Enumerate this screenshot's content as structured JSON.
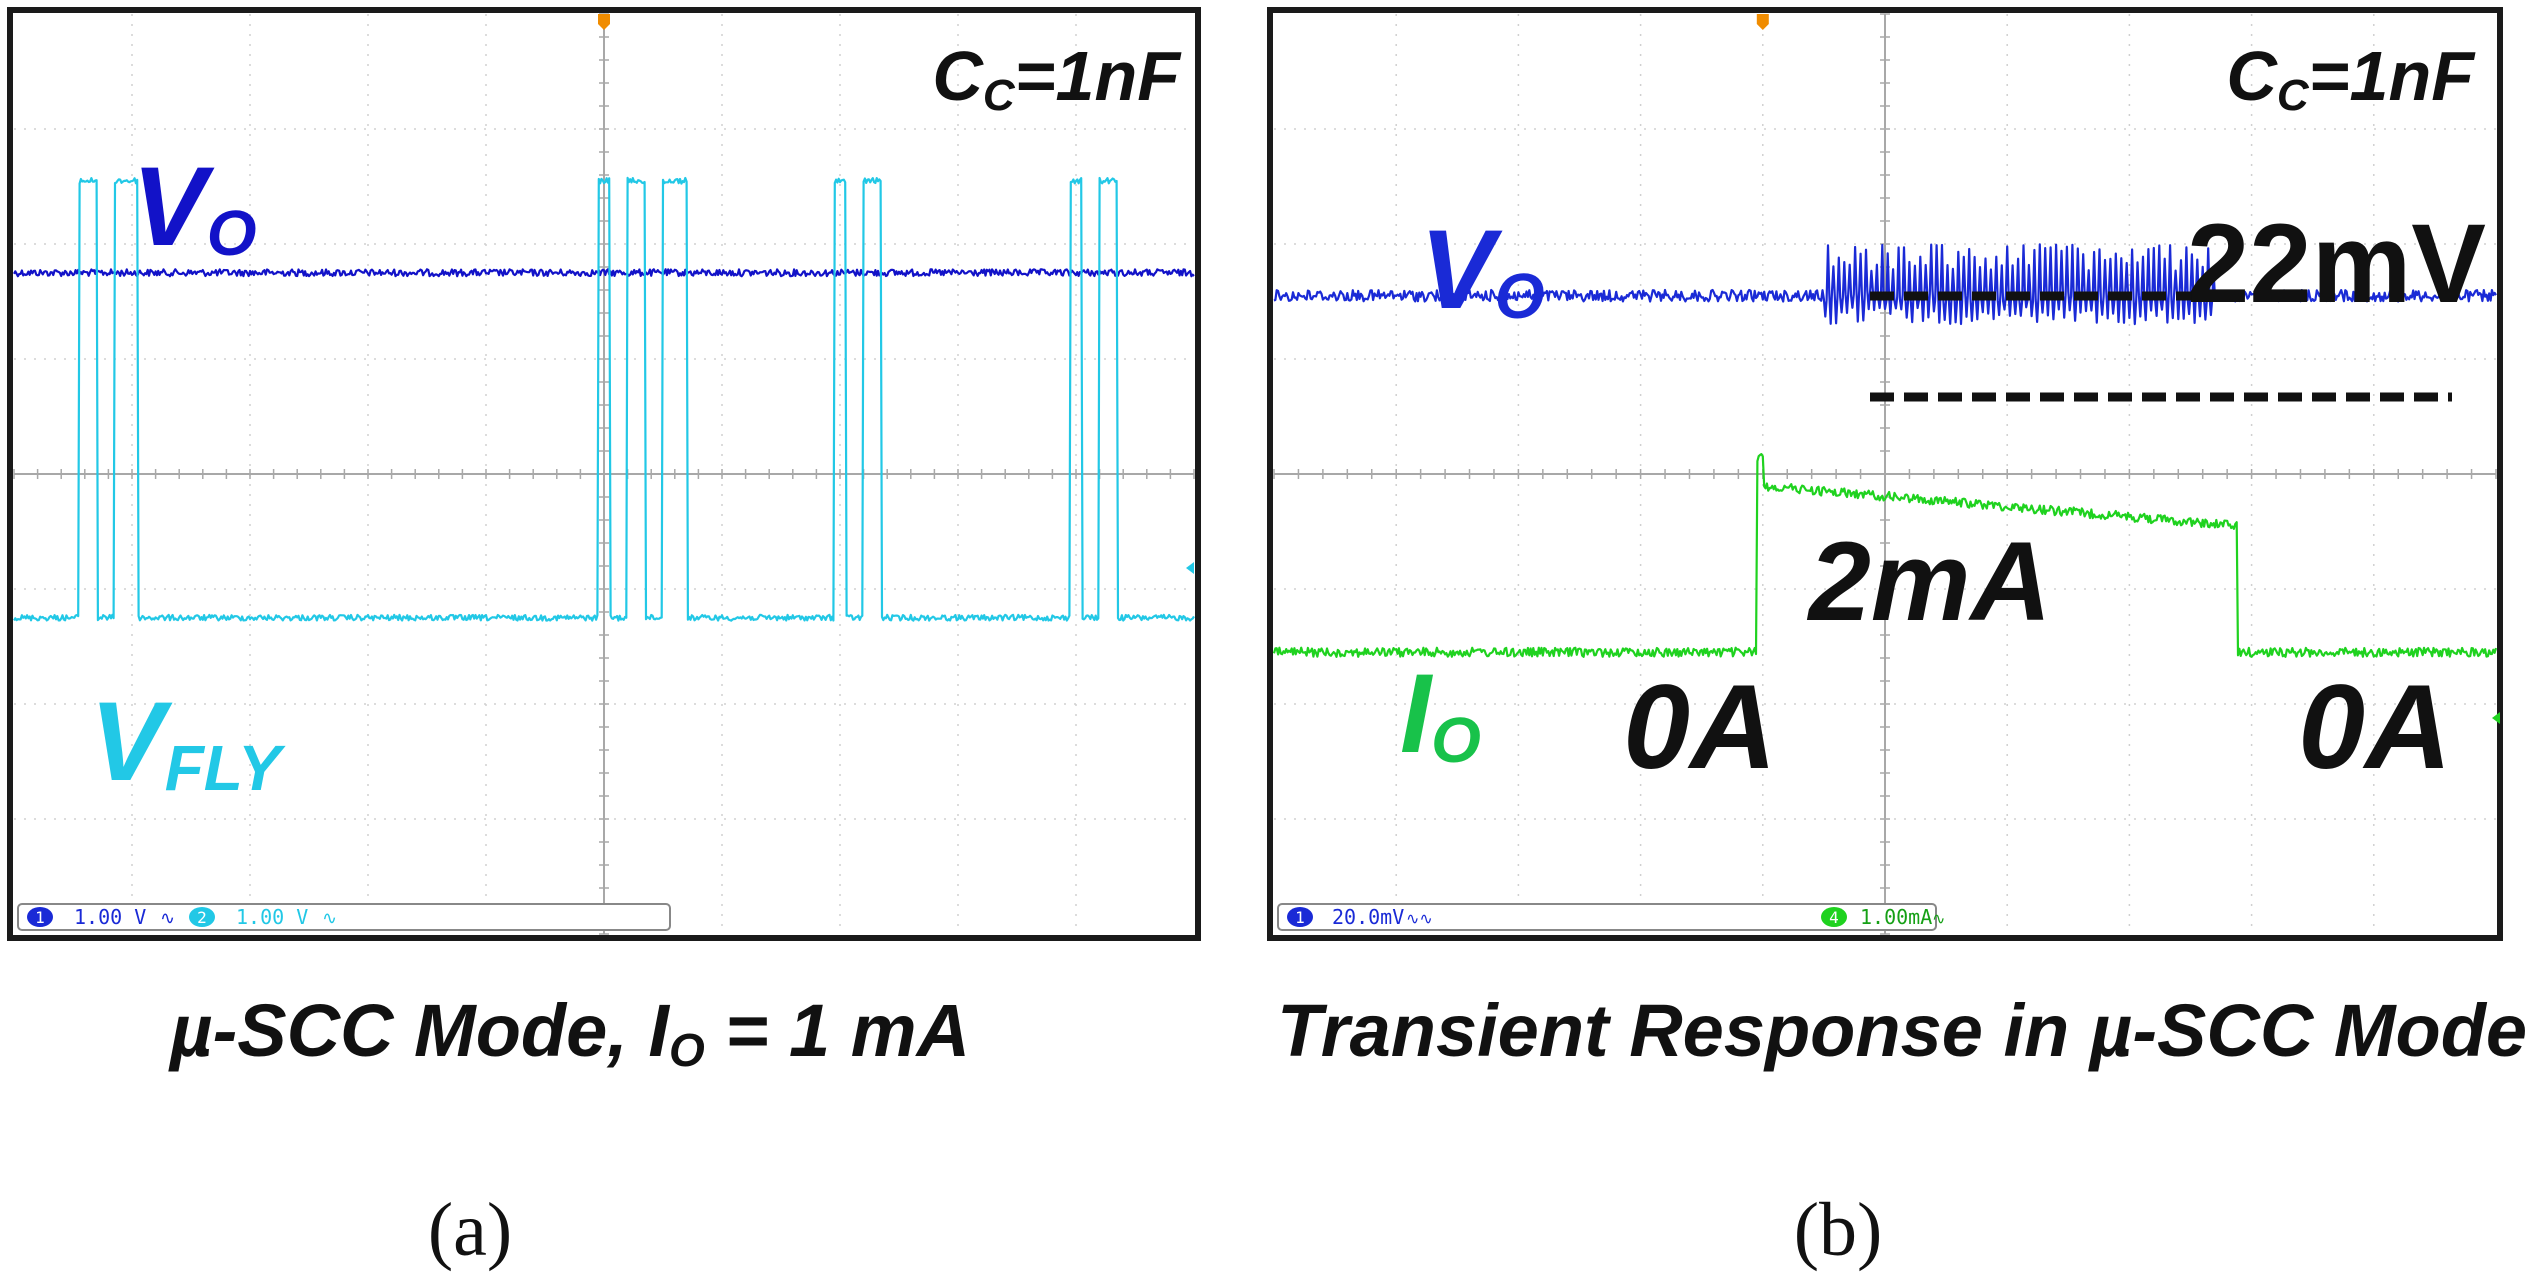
{
  "figure": {
    "panels": [
      {
        "letter": "(a)",
        "caption": {
          "pre": "µ-SCC Mode, ",
          "sym": "I",
          "sub": "O",
          "post": " = 1 mA"
        },
        "cap_label": {
          "sym": "C",
          "sub": "C",
          "rest": "=1nF"
        },
        "scale_bar": [
          {
            "num": "1",
            "text": "1.00 V",
            "coupling": "∿"
          },
          {
            "num": "2",
            "text": "1.00 V",
            "coupling": "∿"
          }
        ]
      },
      {
        "letter": "(b)",
        "caption": {
          "text": "Transient Response in µ-SCC Mode"
        },
        "cap_label": {
          "sym": "C",
          "sub": "C",
          "rest": "=1nF"
        },
        "scale_bar": [
          {
            "num": "1",
            "text": "20.0mV",
            "coupling": "∿∿"
          },
          {
            "num": "4",
            "text": "1.00mA",
            "coupling": "∿"
          }
        ]
      }
    ]
  },
  "chart_data": [
    {
      "type": "line",
      "title": "µ-SCC Mode, IO = 1 mA",
      "annotation": "CC=1nF",
      "x_divisions": 10,
      "y_divisions": 8,
      "trigger_marker_x_div": 5,
      "series": [
        {
          "name": "VO",
          "label_sym": "V",
          "label_sub": "O",
          "color": "#1212c8",
          "kind": "flat",
          "baseline_div": 2.25,
          "noise_div": 0.03
        },
        {
          "name": "VFLY",
          "label_sym": "V",
          "label_sub": "FLY",
          "color": "#22c8e6",
          "kind": "pulses",
          "baseline_div": 5.25,
          "high_div": 1.45,
          "noise_div": 0.025,
          "pulse_bursts_div": [
            [
              [
                0.55,
                0.7
              ],
              [
                0.85,
                1.05
              ]
            ],
            [
              [
                4.95,
                5.05
              ],
              [
                5.2,
                5.35
              ],
              [
                5.5,
                5.7
              ]
            ],
            [
              [
                6.95,
                7.05
              ],
              [
                7.2,
                7.35
              ]
            ],
            [
              [
                8.95,
                9.05
              ],
              [
                9.2,
                9.35
              ]
            ]
          ]
        }
      ]
    },
    {
      "type": "line",
      "title": "Transient Response in µ-SCC Mode",
      "annotation": "CC=1nF",
      "x_divisions": 10,
      "y_divisions": 8,
      "trigger_marker_x_div": 4,
      "series": [
        {
          "name": "VO",
          "label_sym": "V",
          "label_sub": "O",
          "color": "#1a2ad6",
          "kind": "ripple",
          "baseline_div": 2.45,
          "noise_div": 0.05,
          "ripple_start_div": 4.5,
          "ripple_end_div": 7.7,
          "ripple_pp": "22mV"
        },
        {
          "name": "IO",
          "label_sym": "I",
          "label_sub": "O",
          "color": "#1fd21f",
          "kind": "step",
          "low_div": 5.55,
          "high_div": 4.1,
          "high_end_div": 4.45,
          "step_up_div": 3.95,
          "step_down_div": 7.88,
          "noise_div": 0.04,
          "levels": {
            "low": "0A",
            "high": "2mA"
          }
        }
      ],
      "annotations": [
        "22mV",
        "2mA",
        "0A",
        "0A"
      ]
    }
  ]
}
